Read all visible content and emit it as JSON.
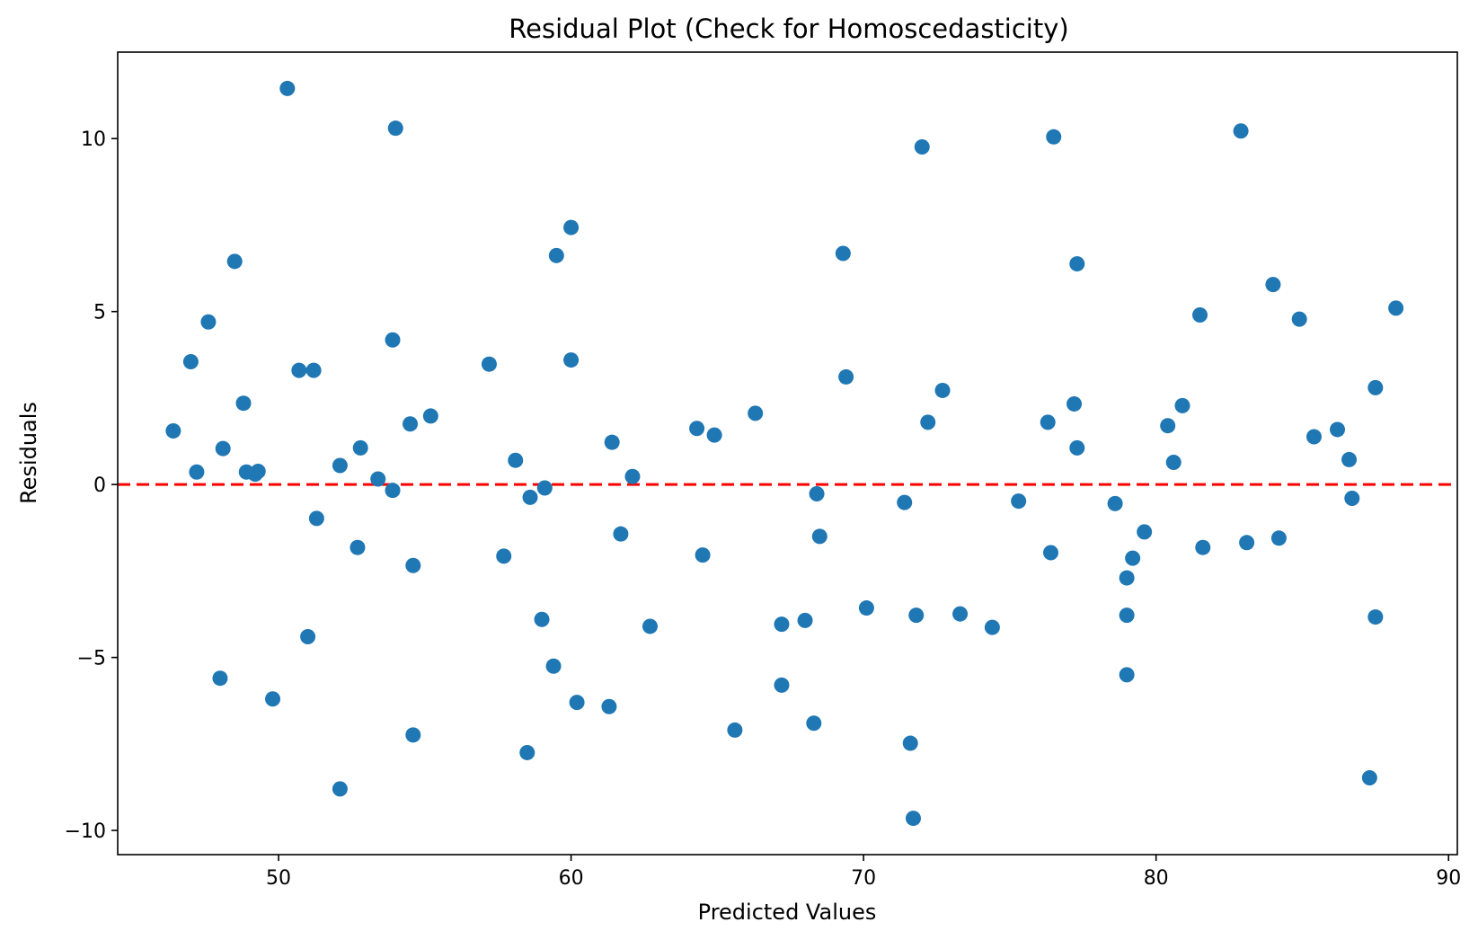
{
  "chart_data": {
    "type": "scatter",
    "title": "Residual Plot (Check for Homoscedasticity)",
    "xlabel": "Predicted Values",
    "ylabel": "Residuals",
    "xlim": [
      44.5,
      90.3
    ],
    "ylim": [
      -10.7,
      12.5
    ],
    "x_ticks": [
      50,
      60,
      70,
      80,
      90
    ],
    "x_tick_labels": [
      "50",
      "60",
      "70",
      "80",
      "90"
    ],
    "y_ticks": [
      -10,
      -5,
      0,
      5,
      10
    ],
    "y_tick_labels": [
      "−10",
      "−5",
      "0",
      "5",
      "10"
    ],
    "grid": false,
    "legend": "none",
    "marker_color": "#1f77b4",
    "reference_line": {
      "y": 0,
      "color": "#ff0000",
      "style": "dashed"
    },
    "points": [
      {
        "x": 46.4,
        "y": 1.55
      },
      {
        "x": 47.0,
        "y": 3.55
      },
      {
        "x": 47.2,
        "y": 0.36
      },
      {
        "x": 47.6,
        "y": 4.7
      },
      {
        "x": 48.0,
        "y": -5.6
      },
      {
        "x": 48.1,
        "y": 1.04
      },
      {
        "x": 48.5,
        "y": 6.45
      },
      {
        "x": 48.8,
        "y": 2.35
      },
      {
        "x": 48.9,
        "y": 0.36
      },
      {
        "x": 49.2,
        "y": 0.3
      },
      {
        "x": 49.3,
        "y": 0.38
      },
      {
        "x": 49.8,
        "y": -6.2
      },
      {
        "x": 50.3,
        "y": 11.45
      },
      {
        "x": 50.7,
        "y": 3.3
      },
      {
        "x": 51.0,
        "y": -4.4
      },
      {
        "x": 51.2,
        "y": 3.3
      },
      {
        "x": 51.3,
        "y": -0.98
      },
      {
        "x": 52.1,
        "y": 0.55
      },
      {
        "x": 52.1,
        "y": -8.8
      },
      {
        "x": 52.7,
        "y": -1.82
      },
      {
        "x": 52.8,
        "y": 1.06
      },
      {
        "x": 53.4,
        "y": 0.16
      },
      {
        "x": 53.9,
        "y": -0.17
      },
      {
        "x": 53.9,
        "y": 4.18
      },
      {
        "x": 54.0,
        "y": 10.3
      },
      {
        "x": 54.5,
        "y": 1.75
      },
      {
        "x": 54.6,
        "y": -2.34
      },
      {
        "x": 54.6,
        "y": -7.24
      },
      {
        "x": 55.2,
        "y": 1.98
      },
      {
        "x": 57.2,
        "y": 3.48
      },
      {
        "x": 57.7,
        "y": -2.07
      },
      {
        "x": 58.1,
        "y": 0.7
      },
      {
        "x": 58.5,
        "y": -7.75
      },
      {
        "x": 58.6,
        "y": -0.37
      },
      {
        "x": 59.0,
        "y": -3.9
      },
      {
        "x": 59.1,
        "y": -0.1
      },
      {
        "x": 59.4,
        "y": -5.25
      },
      {
        "x": 59.5,
        "y": 6.62
      },
      {
        "x": 60.0,
        "y": 7.43
      },
      {
        "x": 60.0,
        "y": 3.6
      },
      {
        "x": 60.2,
        "y": -6.3
      },
      {
        "x": 61.3,
        "y": -6.42
      },
      {
        "x": 61.4,
        "y": 1.22
      },
      {
        "x": 61.7,
        "y": -1.43
      },
      {
        "x": 62.1,
        "y": 0.23
      },
      {
        "x": 62.7,
        "y": -4.1
      },
      {
        "x": 64.3,
        "y": 1.62
      },
      {
        "x": 64.5,
        "y": -2.04
      },
      {
        "x": 64.9,
        "y": 1.43
      },
      {
        "x": 65.6,
        "y": -7.1
      },
      {
        "x": 66.3,
        "y": 2.06
      },
      {
        "x": 67.2,
        "y": -4.04
      },
      {
        "x": 67.2,
        "y": -5.8
      },
      {
        "x": 68.0,
        "y": -3.93
      },
      {
        "x": 68.3,
        "y": -6.9
      },
      {
        "x": 68.4,
        "y": -0.27
      },
      {
        "x": 68.5,
        "y": -1.5
      },
      {
        "x": 69.3,
        "y": 6.68
      },
      {
        "x": 69.4,
        "y": 3.11
      },
      {
        "x": 70.1,
        "y": -3.57
      },
      {
        "x": 71.4,
        "y": -0.52
      },
      {
        "x": 71.6,
        "y": -7.48
      },
      {
        "x": 71.7,
        "y": -9.65
      },
      {
        "x": 71.8,
        "y": -3.78
      },
      {
        "x": 72.0,
        "y": 9.76
      },
      {
        "x": 72.2,
        "y": 1.8
      },
      {
        "x": 72.7,
        "y": 2.72
      },
      {
        "x": 73.3,
        "y": -3.74
      },
      {
        "x": 74.4,
        "y": -4.13
      },
      {
        "x": 75.3,
        "y": -0.48
      },
      {
        "x": 76.3,
        "y": 1.8
      },
      {
        "x": 76.4,
        "y": -1.97
      },
      {
        "x": 76.5,
        "y": 10.05
      },
      {
        "x": 77.2,
        "y": 2.33
      },
      {
        "x": 77.3,
        "y": 6.38
      },
      {
        "x": 77.3,
        "y": 1.06
      },
      {
        "x": 78.6,
        "y": -0.55
      },
      {
        "x": 79.0,
        "y": -2.7
      },
      {
        "x": 79.0,
        "y": -3.78
      },
      {
        "x": 79.0,
        "y": -5.5
      },
      {
        "x": 79.2,
        "y": -2.13
      },
      {
        "x": 79.6,
        "y": -1.37
      },
      {
        "x": 80.4,
        "y": 1.7
      },
      {
        "x": 80.6,
        "y": 0.64
      },
      {
        "x": 80.9,
        "y": 2.28
      },
      {
        "x": 81.5,
        "y": 4.9
      },
      {
        "x": 81.6,
        "y": -1.82
      },
      {
        "x": 82.9,
        "y": 10.22
      },
      {
        "x": 83.1,
        "y": -1.68
      },
      {
        "x": 84.0,
        "y": 5.78
      },
      {
        "x": 84.2,
        "y": -1.55
      },
      {
        "x": 84.9,
        "y": 4.78
      },
      {
        "x": 85.4,
        "y": 1.38
      },
      {
        "x": 86.2,
        "y": 1.59
      },
      {
        "x": 86.6,
        "y": 0.72
      },
      {
        "x": 86.7,
        "y": -0.4
      },
      {
        "x": 87.3,
        "y": -8.48
      },
      {
        "x": 87.5,
        "y": 2.8
      },
      {
        "x": 87.5,
        "y": -3.83
      },
      {
        "x": 88.2,
        "y": 5.1
      }
    ]
  }
}
